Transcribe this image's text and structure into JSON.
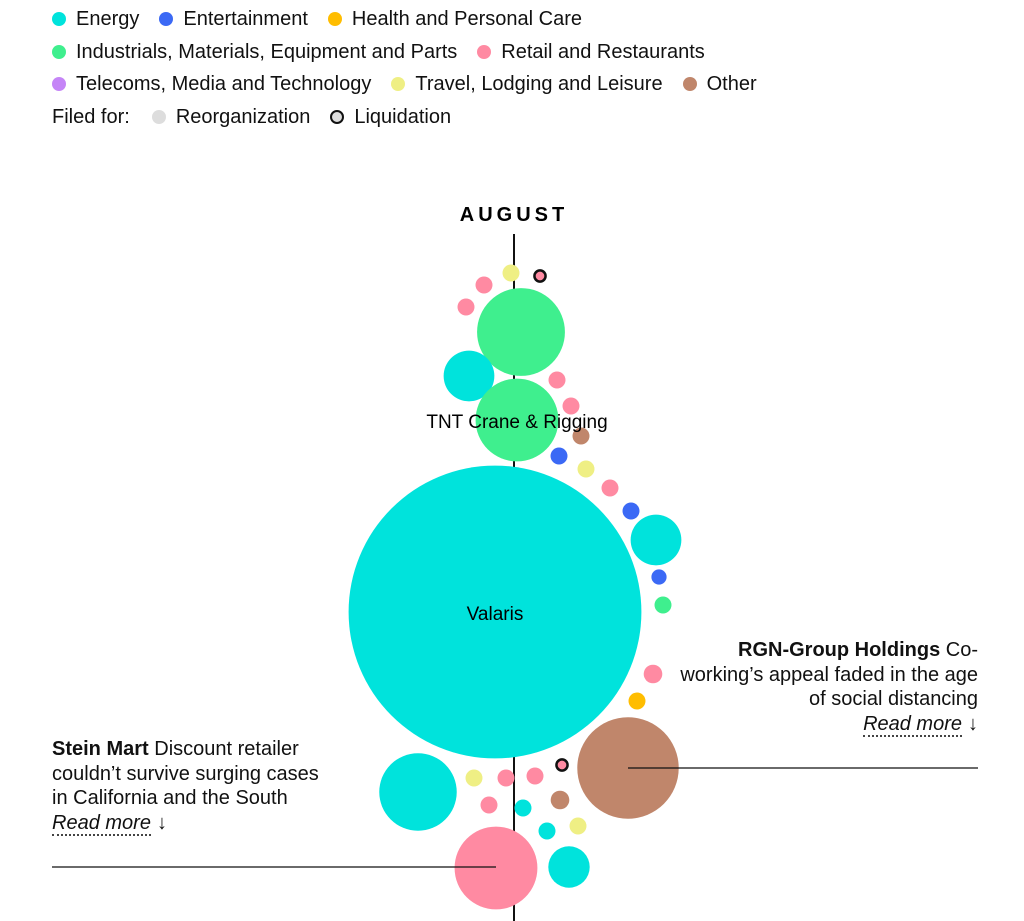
{
  "legend": {
    "categories": [
      {
        "name": "Energy",
        "color": "#00e3dc"
      },
      {
        "name": "Entertainment",
        "color": "#3b69f5"
      },
      {
        "name": "Health and Personal Care",
        "color": "#ffbd00"
      },
      {
        "name": "Industrials, Materials, Equipment and Parts",
        "color": "#3fef8e"
      },
      {
        "name": "Retail and Restaurants",
        "color": "#ff8aa2"
      },
      {
        "name": "Telecoms, Media and Technology",
        "color": "#c585f7"
      },
      {
        "name": "Travel, Lodging and Leisure",
        "color": "#efef84"
      },
      {
        "name": "Other",
        "color": "#c0866b"
      }
    ],
    "filed_for_label": "Filed for:",
    "filed_for": [
      {
        "name": "Reorganization",
        "color": "#dddddd"
      },
      {
        "name": "Liquidation",
        "color": "#dddddd"
      }
    ]
  },
  "chart_data": {
    "type": "scatter",
    "month": "AUGUST",
    "bubbles": [
      {
        "category": "Travel, Lodging and Leisure",
        "size": 1,
        "filing": "Reorganization"
      },
      {
        "category": "Retail and Restaurants",
        "size": 1,
        "filing": "Liquidation"
      },
      {
        "category": "Retail and Restaurants",
        "size": 1,
        "filing": "Reorganization"
      },
      {
        "category": "Retail and Restaurants",
        "size": 1,
        "filing": "Reorganization"
      },
      {
        "category": "Industrials, Materials, Equipment and Parts",
        "size": 9,
        "filing": "Reorganization"
      },
      {
        "category": "Energy",
        "size": 3,
        "filing": "Reorganization"
      },
      {
        "category": "Retail and Restaurants",
        "size": 1,
        "filing": "Reorganization"
      },
      {
        "category": "Retail and Restaurants",
        "size": 1,
        "filing": "Reorganization"
      },
      {
        "category": "Industrials, Materials, Equipment and Parts",
        "size": 8,
        "filing": "Reorganization",
        "label": "TNT Crane & Rigging"
      },
      {
        "category": "Other",
        "size": 1,
        "filing": "Reorganization"
      },
      {
        "category": "Entertainment",
        "size": 1,
        "filing": "Reorganization"
      },
      {
        "category": "Travel, Lodging and Leisure",
        "size": 1,
        "filing": "Reorganization"
      },
      {
        "category": "Retail and Restaurants",
        "size": 1,
        "filing": "Reorganization"
      },
      {
        "category": "Entertainment",
        "size": 1,
        "filing": "Reorganization"
      },
      {
        "category": "Energy",
        "size": 3,
        "filing": "Reorganization"
      },
      {
        "category": "Entertainment",
        "size": 0.8,
        "filing": "Reorganization"
      },
      {
        "category": "Industrials, Materials, Equipment and Parts",
        "size": 1,
        "filing": "Reorganization"
      },
      {
        "category": "Energy",
        "size": 100,
        "filing": "Reorganization",
        "label": "Valaris"
      },
      {
        "category": "Retail and Restaurants",
        "size": 1.2,
        "filing": "Reorganization"
      },
      {
        "category": "Health and Personal Care",
        "size": 1,
        "filing": "Reorganization"
      },
      {
        "category": "Other",
        "size": 12,
        "filing": "Reorganization"
      },
      {
        "category": "Retail and Restaurants",
        "size": 1,
        "filing": "Liquidation"
      },
      {
        "category": "Energy",
        "size": 7,
        "filing": "Reorganization"
      },
      {
        "category": "Travel, Lodging and Leisure",
        "size": 1,
        "filing": "Reorganization"
      },
      {
        "category": "Retail and Restaurants",
        "size": 1,
        "filing": "Reorganization"
      },
      {
        "category": "Retail and Restaurants",
        "size": 1,
        "filing": "Reorganization"
      },
      {
        "category": "Other",
        "size": 1.2,
        "filing": "Reorganization"
      },
      {
        "category": "Retail and Restaurants",
        "size": 1,
        "filing": "Reorganization"
      },
      {
        "category": "Energy",
        "size": 1,
        "filing": "Reorganization"
      },
      {
        "category": "Energy",
        "size": 1,
        "filing": "Reorganization"
      },
      {
        "category": "Travel, Lodging and Leisure",
        "size": 1,
        "filing": "Reorganization"
      },
      {
        "category": "Retail and Restaurants",
        "size": 8,
        "filing": "Reorganization"
      },
      {
        "category": "Energy",
        "size": 2,
        "filing": "Reorganization"
      }
    ]
  },
  "annotations": {
    "rgn": {
      "company": "RGN-Group Holdings",
      "text": "Co-working’s appeal faded in the age of social distancing",
      "link": "Read more",
      "arrow": "↓"
    },
    "stein": {
      "company": "Stein Mart",
      "text": "Discount retailer couldn’t survive surging cases in California and the South",
      "link": "Read more",
      "arrow": "↓"
    }
  }
}
